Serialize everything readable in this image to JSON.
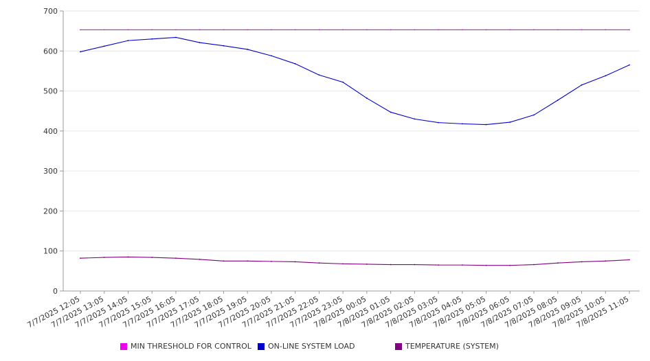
{
  "chart_data": {
    "type": "line",
    "title": "",
    "xlabel": "",
    "ylabel": "",
    "ylim": [
      0,
      700
    ],
    "yticks": [
      0,
      100,
      200,
      300,
      400,
      500,
      600,
      700
    ],
    "grid": true,
    "legend_position": "bottom",
    "categories": [
      "7/7/2025 12:05",
      "7/7/2025 13:05",
      "7/7/2025 14:05",
      "7/7/2025 15:05",
      "7/7/2025 16:05",
      "7/7/2025 17:05",
      "7/7/2025 18:05",
      "7/7/2025 19:05",
      "7/7/2025 20:05",
      "7/7/2025 21:05",
      "7/7/2025 22:05",
      "7/7/2025 23:05",
      "7/8/2025 00:05",
      "7/8/2025 01:05",
      "7/8/2025 02:05",
      "7/8/2025 03:05",
      "7/8/2025 04:05",
      "7/8/2025 05:05",
      "7/8/2025 06:05",
      "7/8/2025 07:05",
      "7/8/2025 08:05",
      "7/8/2025 09:05",
      "7/8/2025 10:05",
      "7/8/2025 11:05"
    ],
    "series": [
      {
        "name": "MIN THRESHOLD FOR CONTROL",
        "color": "#ee00ee",
        "values": [
          653,
          653,
          653,
          653,
          653,
          653,
          653,
          653,
          653,
          653,
          653,
          653,
          653,
          653,
          653,
          653,
          653,
          653,
          653,
          653,
          653,
          653,
          653,
          653
        ]
      },
      {
        "name": "ON-LINE SYSTEM LOAD",
        "color": "#0000cc",
        "values": [
          598,
          612,
          626,
          630,
          634,
          621,
          613,
          604,
          588,
          568,
          540,
          522,
          482,
          447,
          430,
          421,
          418,
          416,
          422,
          440,
          477,
          515,
          538,
          565
        ]
      },
      {
        "name": "TEMPERATURE (SYSTEM)",
        "color": "#800080",
        "values": [
          82,
          84,
          85,
          84,
          82,
          79,
          75,
          75,
          74,
          73,
          70,
          68,
          67,
          66,
          66,
          65,
          65,
          64,
          64,
          66,
          70,
          73,
          75,
          78
        ]
      }
    ]
  }
}
